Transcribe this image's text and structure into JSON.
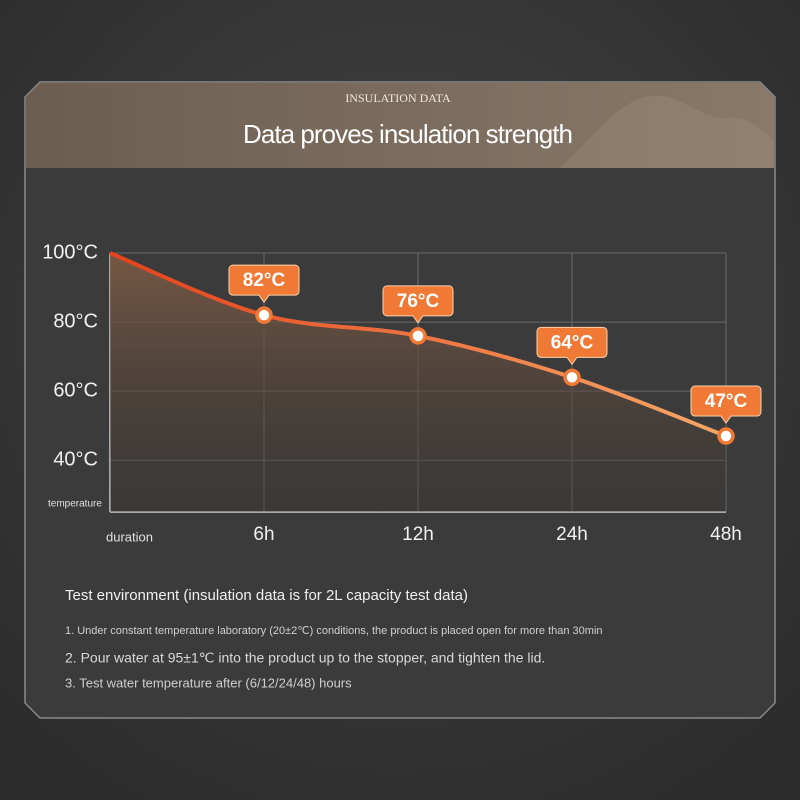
{
  "header": {
    "eyebrow": "INSULATION DATA",
    "title": "Data proves insulation strength"
  },
  "chart_data": {
    "type": "line",
    "categories": [
      null,
      "6h",
      "12h",
      "24h",
      "48h"
    ],
    "series": [
      {
        "name": null,
        "color": "#f07a35",
        "values": [
          100,
          82,
          76,
          64,
          47
        ],
        "value_labels": [
          null,
          "82°C",
          "76°C",
          "64°C",
          "47°C"
        ]
      }
    ],
    "ylim": [
      25,
      100
    ],
    "yticks": [
      {
        "value": 100,
        "label": "100°C"
      },
      {
        "value": 80,
        "label": "80°C"
      },
      {
        "value": 60,
        "label": "60°C"
      },
      {
        "value": 40,
        "label": "40°C"
      }
    ],
    "grid": true,
    "y_label": "temperature",
    "x_label": "duration"
  },
  "notes": {
    "title": "Test environment (insulation data is for 2L capacity test data)",
    "items": [
      "1. Under constant temperature laboratory (20±2℃) conditions, the product is placed open for more than 30min",
      "2. Pour water at 95±1℃ into the product up to the stopper, and tighten the lid.",
      "3. Test water temperature after (6/12/24/48) hours"
    ]
  }
}
